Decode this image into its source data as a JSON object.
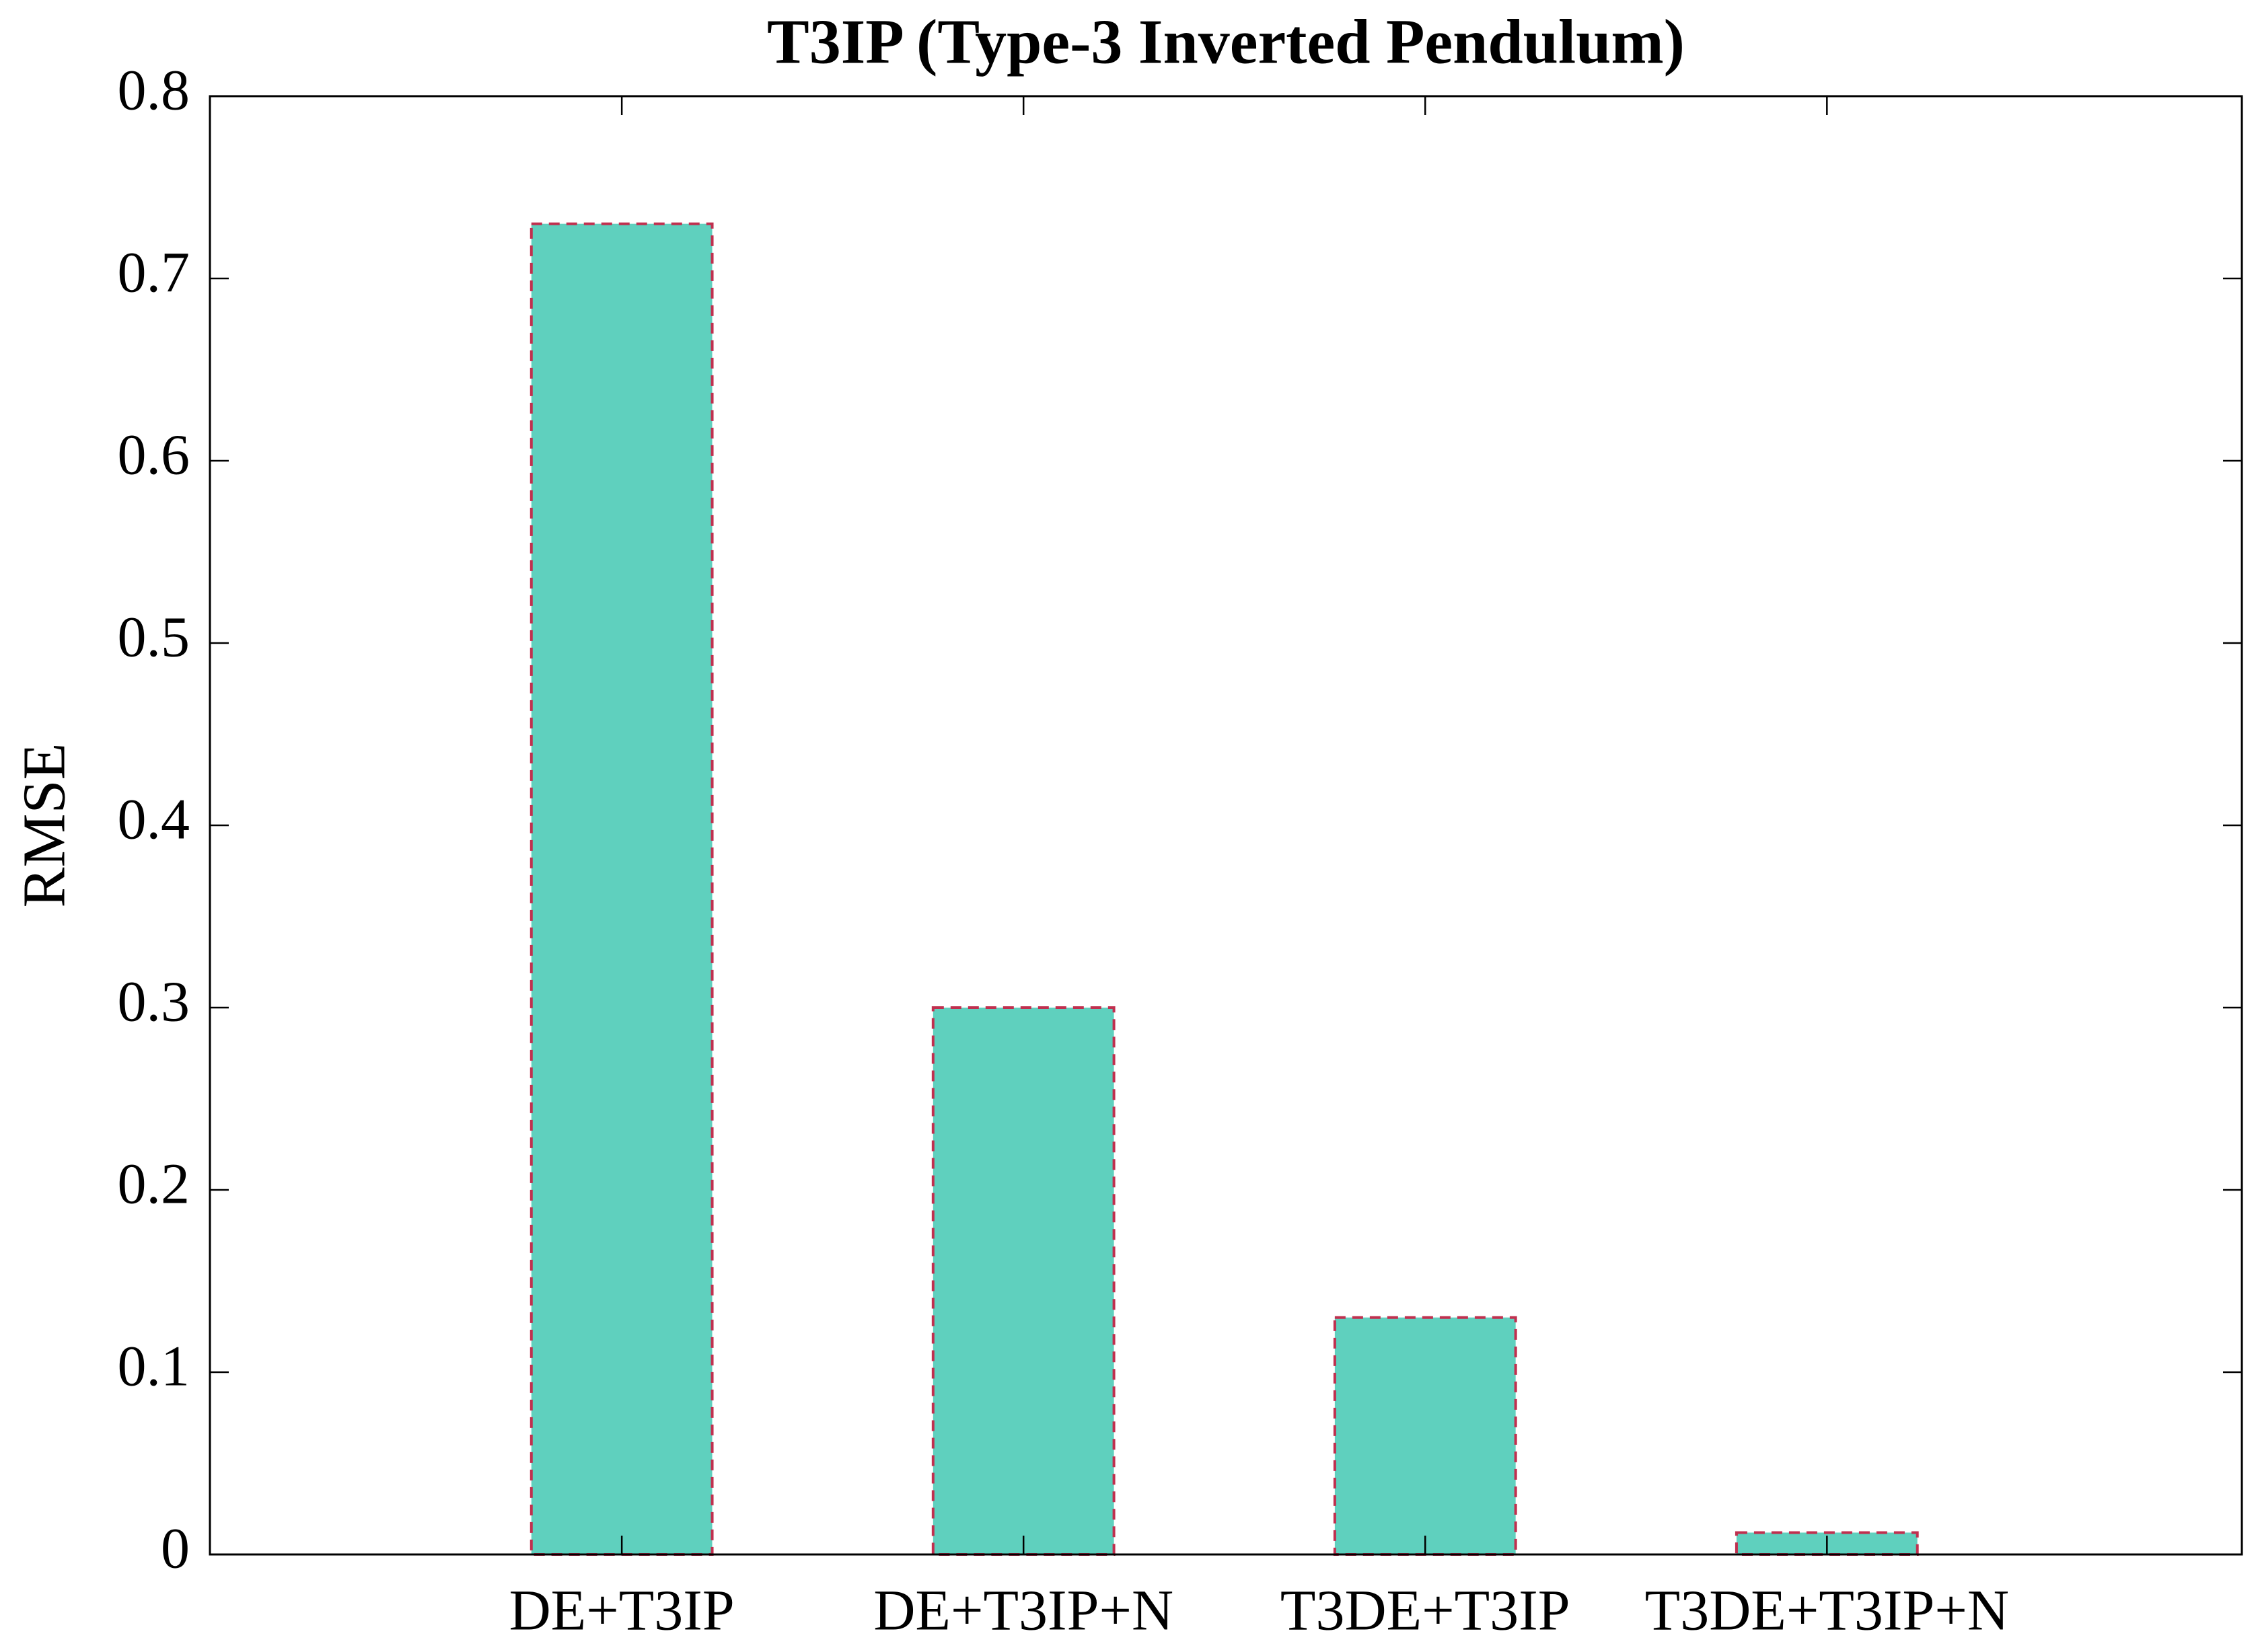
{
  "chart_data": {
    "type": "bar",
    "title": "T3IP (Type-3 Inverted Pendulum)",
    "y_label": "RMSE",
    "categories": [
      "DE+T3IP",
      "DE+T3IP+N",
      "T3DE+T3IP",
      "T3DE+T3IP+N"
    ],
    "values": [
      0.73,
      0.3,
      0.13,
      0.012
    ],
    "color": "#5fd0be",
    "edge_color": "#c0304f",
    "ylim": [
      0,
      0.8
    ],
    "yticks": [
      0,
      0.1,
      0.2,
      0.3,
      0.4,
      0.5,
      0.6,
      0.7,
      0.8
    ],
    "grid": false
  }
}
